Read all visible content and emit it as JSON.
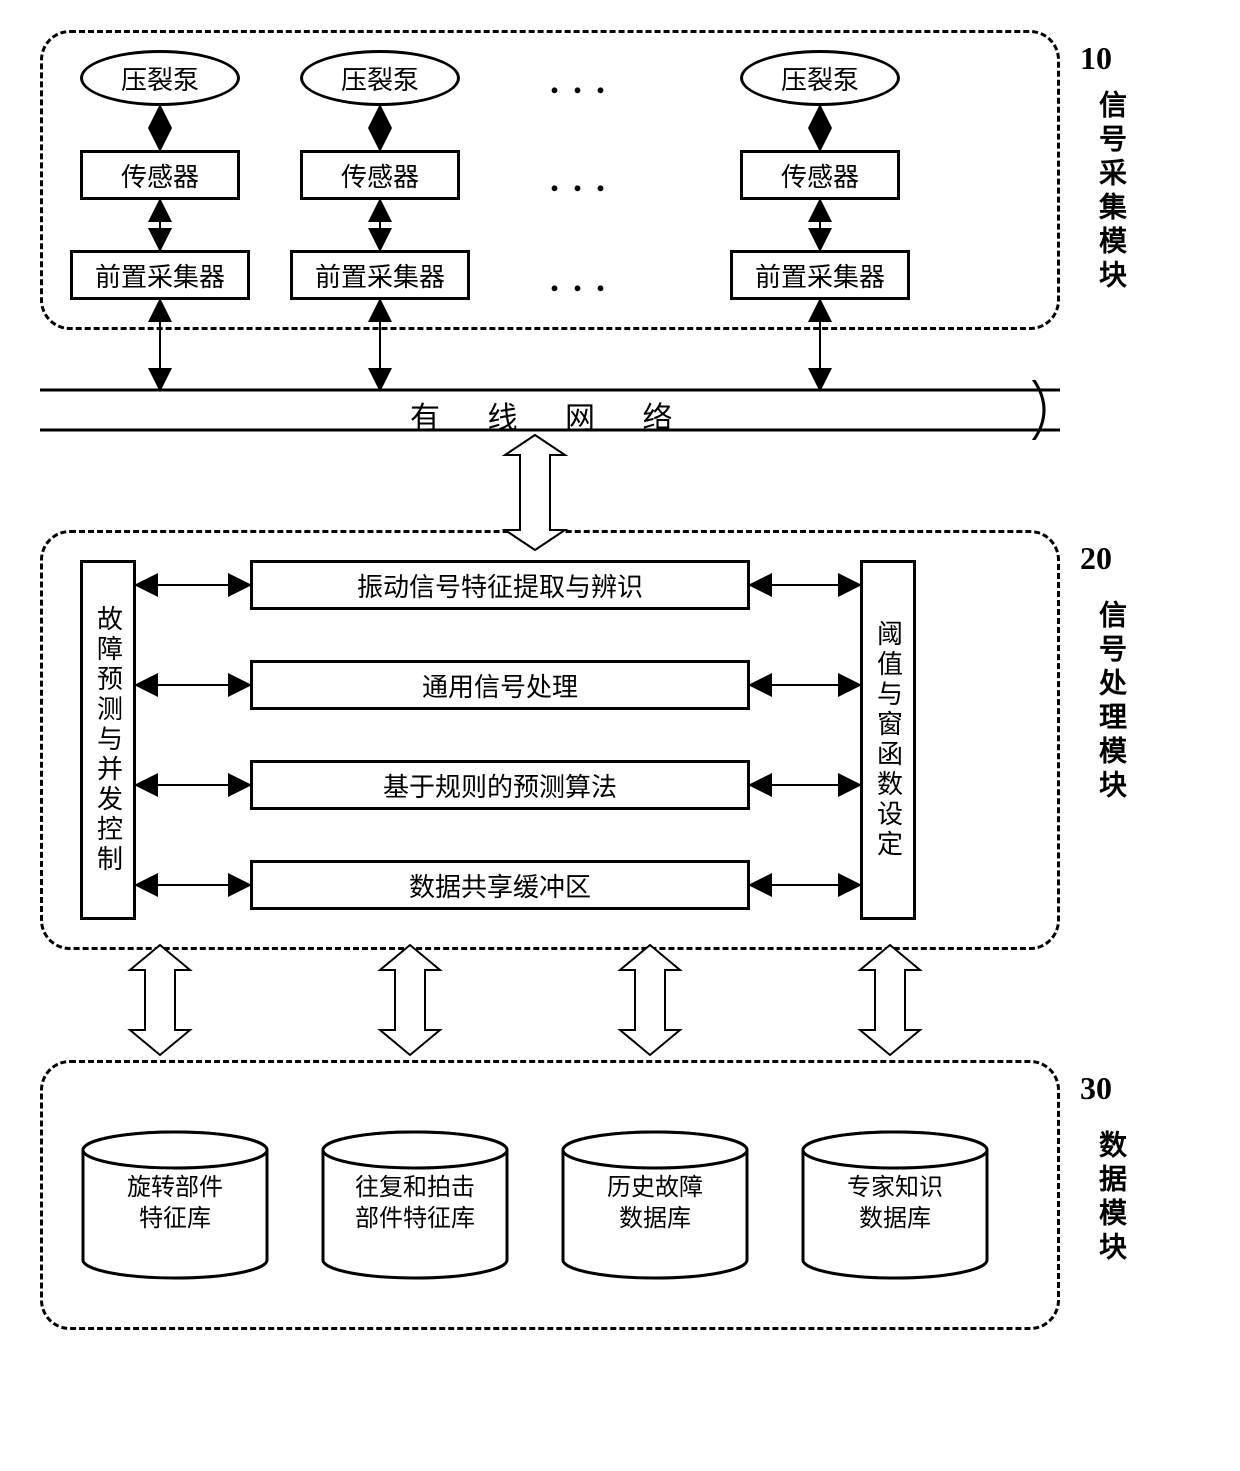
{
  "colors": {
    "stroke": "#000000",
    "bg": "#ffffff",
    "dash": "#000000",
    "arrow_fill": "#000000",
    "open_arrow_fill": "#ffffff"
  },
  "line_widths": {
    "module_border": 3,
    "box_border": 3,
    "arrow_line": 2,
    "open_arrow_line": 2,
    "bus_line": 3
  },
  "font": {
    "family": "SimSun",
    "box_fontsize": 26,
    "label_fontsize": 28,
    "num_fontsize": 32,
    "bus_fontsize": 30,
    "cyl_fontsize": 24,
    "dots_fontsize": 36
  },
  "modules": {
    "m10": {
      "num": "10",
      "label": "信号采集模块"
    },
    "m20": {
      "num": "20",
      "label": "信号处理模块"
    },
    "m30": {
      "num": "30",
      "label": "数据模块"
    }
  },
  "top": {
    "pump": "压裂泵",
    "sensor": "传感器",
    "collector": "前置采集器",
    "ellipsis": "..."
  },
  "bus": {
    "label": "有 线 网 络"
  },
  "proc": {
    "left": "故障预测与并发控制",
    "right": "阈值与窗函数设定",
    "r1": "振动信号特征提取与辨识",
    "r2": "通用信号处理",
    "r3": "基于规则的预测算法",
    "r4": "数据共享缓冲区"
  },
  "db": {
    "c1": "旋转部件特征库",
    "c2": "往复和拍击部件特征库",
    "c3": "历史故障数据库",
    "c4": "专家知识数据库"
  }
}
